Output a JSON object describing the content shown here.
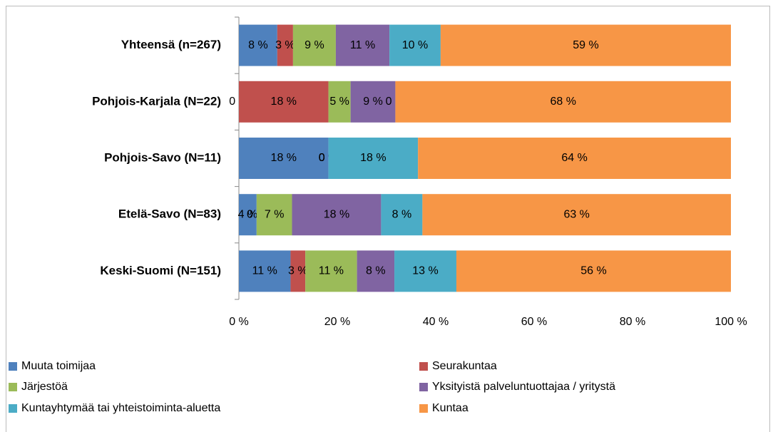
{
  "chart_data": {
    "type": "stacked_barh",
    "categories": [
      "Yhteensä  (n=267)",
      "Pohjois-Karjala (N=22)",
      "Pohjois-Savo (N=11)",
      "Etelä-Savo (N=83)",
      "Keski-Suomi (N=151)"
    ],
    "series": [
      {
        "name": "Muuta toimijaa",
        "color": "#4f81bd",
        "values": [
          7.8,
          0,
          18.2,
          3.6,
          10.5
        ],
        "value_labels": [
          "8 %",
          "0 %",
          "18 %",
          "4 %",
          "11 %"
        ]
      },
      {
        "name": "Seurakuntaa",
        "color": "#c0504d",
        "values": [
          3.2,
          18.2,
          0,
          0,
          3.0
        ],
        "value_labels": [
          "3 %",
          "18 %",
          "0 %",
          "0 %",
          "3 %"
        ]
      },
      {
        "name": "Järjestöä",
        "color": "#9bbb59",
        "values": [
          8.7,
          4.5,
          0,
          7.2,
          10.5
        ],
        "value_labels": [
          "9 %",
          "5 %",
          "0 %",
          "7 %",
          "11 %"
        ]
      },
      {
        "name": "Yksityistä palveluntuottajaa / yritystä",
        "color": "#8064a2",
        "values": [
          10.9,
          9.1,
          0,
          18.1,
          7.6
        ],
        "value_labels": [
          "11 %",
          "9 %",
          "0 %",
          "18 %",
          "8 %"
        ]
      },
      {
        "name": "Kuntayhtymää tai yhteistoiminta-aluetta",
        "color": "#4bacc6",
        "values": [
          10.4,
          0,
          18.2,
          8.4,
          12.6
        ],
        "value_labels": [
          "10 %",
          "0 %",
          "18 %",
          "8 %",
          "13 %"
        ]
      },
      {
        "name": "Kuntaa",
        "color": "#f79646",
        "values": [
          59.0,
          68.2,
          63.6,
          62.7,
          55.8
        ],
        "value_labels": [
          "59 %",
          "68 %",
          "64 %",
          "63 %",
          "56 %"
        ]
      }
    ],
    "xlim": [
      0,
      100
    ],
    "xticks": [
      {
        "value": 0,
        "label": "0 %"
      },
      {
        "value": 20,
        "label": "20 %"
      },
      {
        "value": 40,
        "label": "40 %"
      },
      {
        "value": 60,
        "label": "60 %"
      },
      {
        "value": 80,
        "label": "80 %"
      },
      {
        "value": 100,
        "label": "100 %"
      }
    ],
    "legend": "bottom"
  }
}
